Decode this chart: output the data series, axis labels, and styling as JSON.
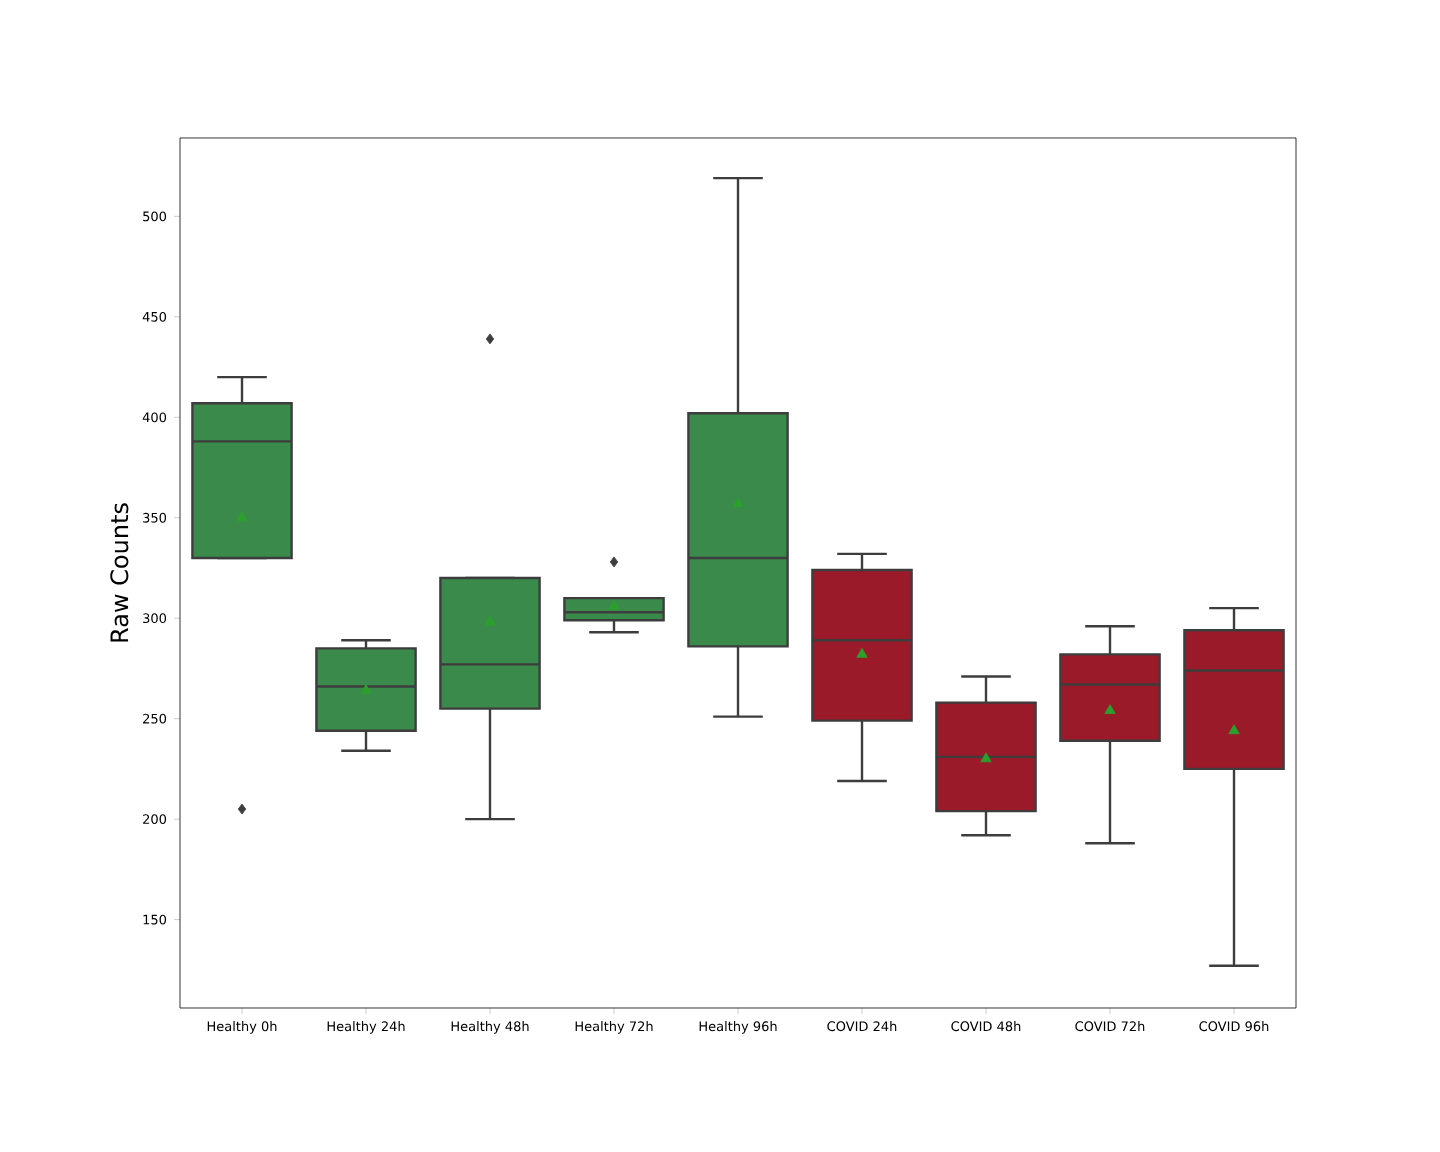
{
  "chart_data": {
    "type": "box",
    "ylabel": "Raw Counts",
    "categories": [
      "Healthy 0h",
      "Healthy 24h",
      "Healthy 48h",
      "Healthy 72h",
      "Healthy 96h",
      "COVID 24h",
      "COVID 48h",
      "COVID 72h",
      "COVID 96h"
    ],
    "colors": [
      "#3a8a4c",
      "#3a8a4c",
      "#3a8a4c",
      "#3a8a4c",
      "#3a8a4c",
      "#9b1a2a",
      "#9b1a2a",
      "#9b1a2a",
      "#9b1a2a"
    ],
    "ylim": [
      106,
      539
    ],
    "yticks": [
      150,
      200,
      250,
      300,
      350,
      400,
      450,
      500
    ],
    "boxes": [
      {
        "low": 330,
        "q1": 330,
        "median": 388,
        "q3": 407,
        "high": 420,
        "mean": 350,
        "outliers": [
          205
        ]
      },
      {
        "low": 234,
        "q1": 244,
        "median": 266,
        "q3": 285,
        "high": 289,
        "mean": 264
      },
      {
        "low": 200,
        "q1": 255,
        "median": 277,
        "q3": 320,
        "high": 320,
        "mean": 298,
        "outliers": [
          439
        ]
      },
      {
        "low": 293,
        "q1": 299,
        "median": 303,
        "q3": 310,
        "high": 310,
        "mean": 306,
        "outliers": [
          328
        ]
      },
      {
        "low": 251,
        "q1": 286,
        "median": 330,
        "q3": 402,
        "high": 519,
        "mean": 357
      },
      {
        "low": 219,
        "q1": 249,
        "median": 289,
        "q3": 324,
        "high": 332,
        "mean": 282
      },
      {
        "low": 192,
        "q1": 204,
        "median": 231,
        "q3": 258,
        "high": 271,
        "mean": 230
      },
      {
        "low": 188,
        "q1": 239,
        "median": 267,
        "q3": 282,
        "high": 296,
        "mean": 254
      },
      {
        "low": 127,
        "q1": 225,
        "median": 274,
        "q3": 294,
        "high": 305,
        "mean": 244
      }
    ]
  }
}
